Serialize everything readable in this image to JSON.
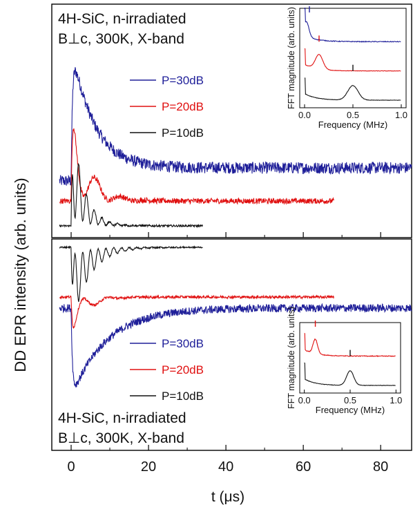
{
  "figure": {
    "y_axis_label": "DD EPR intensity (arb. units)",
    "x_axis_label": "t (μs)"
  },
  "chart_data": [
    {
      "type": "line",
      "panel": "top",
      "annotation_lines": [
        "4H-SiC, n-irradiated",
        "B⊥c, 300K, X-band"
      ],
      "xlim": [
        -5,
        88
      ],
      "x_ticks": [
        0,
        20,
        40,
        60,
        80
      ],
      "grid": false,
      "legend_placement": "upper-middle",
      "series": [
        {
          "name": "P=30dB",
          "color": "#1f1f99",
          "x_range": [
            -3,
            88
          ],
          "peak": 1.0,
          "baseline": 0.1,
          "decay_us": 5.5,
          "osc_period_us": 0,
          "noise": "high"
        },
        {
          "name": "P=20dB",
          "color": "#e01010",
          "x_range": [
            -3,
            68
          ],
          "peak": 0.9,
          "baseline": 0.0,
          "decay_us": 4.0,
          "osc_period_us": 6.5,
          "noise": "medium"
        },
        {
          "name": "P=10dB",
          "color": "#111111",
          "x_range": [
            -3,
            34
          ],
          "peak": 0.95,
          "baseline": -0.2,
          "decay_us": 3.0,
          "osc_period_us": 2.0,
          "noise": "low"
        }
      ],
      "inset": {
        "type": "line",
        "xlabel": "Frequency (MHz)",
        "ylabel": "FFT magnitude (arb. units)",
        "xlim": [
          -0.05,
          1.05
        ],
        "x_ticks": [
          0.0,
          0.5,
          1.0
        ],
        "x_tick_labels": [
          "0.0",
          "0.5",
          "1.0"
        ],
        "series": [
          {
            "name": "P=30dB",
            "color": "#1f1f99",
            "peak_freq_mhz": 0.02,
            "marker_freq_mhz": 0.05
          },
          {
            "name": "P=20dB",
            "color": "#e01010",
            "peak_freq_mhz": 0.15,
            "marker_freq_mhz": 0.15
          },
          {
            "name": "P=10dB",
            "color": "#111111",
            "peak_freq_mhz": 0.5,
            "marker_freq_mhz": 0.5
          }
        ]
      }
    },
    {
      "type": "line",
      "panel": "bottom",
      "annotation_lines": [
        "4H-SiC, n-irradiated",
        "B⊥c, 300K, X-band"
      ],
      "xlim": [
        -5,
        88
      ],
      "x_ticks": [
        0,
        20,
        40,
        60,
        80
      ],
      "x_tick_labels": [
        "0",
        "20",
        "40",
        "60",
        "80"
      ],
      "grid": false,
      "legend_placement": "lower-middle",
      "series": [
        {
          "name": "P=30dB",
          "color": "#1f1f99",
          "x_range": [
            -3,
            88
          ],
          "peak": -1.0,
          "baseline": 0.0,
          "decay_us": 9.0,
          "osc_period_us": 0,
          "noise": "high"
        },
        {
          "name": "P=20dB",
          "color": "#e01010",
          "x_range": [
            -3,
            68
          ],
          "peak": -0.8,
          "baseline": 0.35,
          "decay_us": 3.5,
          "osc_period_us": 6.5,
          "noise": "medium"
        },
        {
          "name": "P=10dB",
          "color": "#111111",
          "x_range": [
            -3,
            34
          ],
          "peak": -0.9,
          "baseline": 0.75,
          "decay_us": 4.5,
          "osc_period_us": 2.0,
          "noise": "low"
        }
      ],
      "inset": {
        "type": "line",
        "xlabel": "Frequency (MHz)",
        "ylabel": "FFT magnitude (arb. units)",
        "xlim": [
          -0.05,
          1.05
        ],
        "x_ticks": [
          0.0,
          0.5,
          1.0
        ],
        "x_tick_labels": [
          "0.0",
          "0.5",
          "1.0"
        ],
        "series": [
          {
            "name": "P=20dB",
            "color": "#e01010",
            "peak_freq_mhz": 0.12,
            "marker_freq_mhz": 0.12
          },
          {
            "name": "P=10dB",
            "color": "#111111",
            "peak_freq_mhz": 0.5,
            "marker_freq_mhz": 0.5
          }
        ]
      }
    }
  ]
}
